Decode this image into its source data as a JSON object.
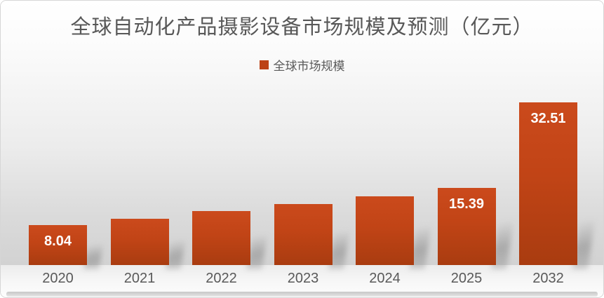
{
  "chart_data": {
    "type": "bar",
    "title": "全球自动化产品摄影设备市场规模及预测（亿元）",
    "legend": [
      "全球市场规模"
    ],
    "legend_position": "top-center",
    "categories": [
      "2020",
      "2021",
      "2022",
      "2023",
      "2024",
      "2025",
      "2032"
    ],
    "series": [
      {
        "name": "全球市场规模",
        "values": [
          8.04,
          9.2,
          10.75,
          12.15,
          13.65,
          15.39,
          32.51
        ]
      }
    ],
    "data_labels": [
      "8.04",
      "",
      "",
      "",
      "",
      "15.39",
      "32.51"
    ],
    "labeled_values": {
      "2020": 8.04,
      "2025": 15.39,
      "2032": 32.51
    },
    "unit": "亿元",
    "xlabel": "",
    "ylabel": "",
    "ylim": [
      0,
      35
    ],
    "grid": false,
    "axes_visible": false,
    "bar_color": "#C14416",
    "bar_gradient_top": "#CB4A1C",
    "bar_gradient_bottom": "#A93C10",
    "legend_swatch_color": "#BC4317",
    "title_color": "#585858",
    "axis_label_color": "#595959",
    "data_label_color": "#FFFFFF"
  }
}
